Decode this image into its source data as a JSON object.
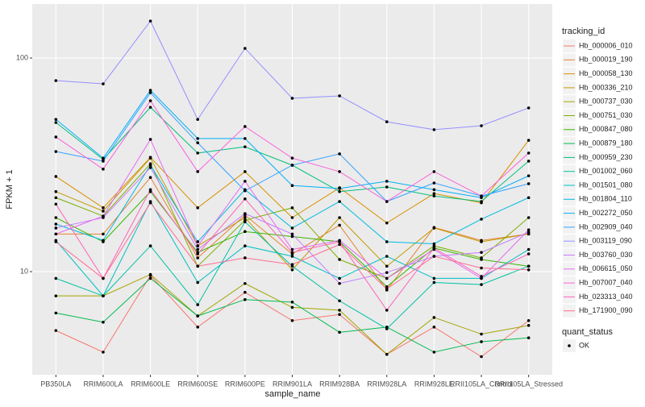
{
  "chart_data": {
    "type": "line",
    "x_label": "sample_name",
    "y_label": "FPKM + 1",
    "y_scale": "log",
    "grid": true,
    "legend_position": "right",
    "point_color": "#000000",
    "legend_title": "tracking_id",
    "shape_legend": {
      "title": "quant_status",
      "labels": [
        "OK"
      ]
    },
    "ylim": [
      3.29,
      179
    ],
    "yticks": [
      10,
      100
    ],
    "categories": [
      "PB350LA",
      "RRIM600LA",
      "RRIM600LE",
      "RRIM600SE",
      "RRIM600PE",
      "RRIM901LA",
      "RRIM928BA",
      "RRIM928LA",
      "RRIM928LE",
      "RRII105LA_Control",
      "RRII105LA_Stressed"
    ],
    "series": [
      {
        "name": "Hb_000006_010",
        "color": "#F8766D",
        "values": [
          5.3,
          4.2,
          9.6,
          5.5,
          8.0,
          5.9,
          6.3,
          4.1,
          5.5,
          4.0,
          5.9
        ]
      },
      {
        "name": "Hb_000019_190",
        "color": "#EA8331",
        "values": [
          15.0,
          15.0,
          27.6,
          11.6,
          18.4,
          12.1,
          16.5,
          8.2,
          16.1,
          14.0,
          15.0
        ]
      },
      {
        "name": "Hb_000058_130",
        "color": "#D89000",
        "values": [
          27.9,
          19.9,
          34.3,
          19.9,
          29.4,
          17.9,
          24.7,
          16.9,
          23.2,
          21.0,
          41.2
        ]
      },
      {
        "name": "Hb_000336_210",
        "color": "#C09B00",
        "values": [
          23.7,
          19.2,
          34.0,
          13.2,
          17.9,
          10.2,
          17.9,
          10.6,
          16.0,
          13.8,
          15.0
        ]
      },
      {
        "name": "Hb_000737_030",
        "color": "#A3A500",
        "values": [
          7.7,
          7.7,
          9.7,
          6.2,
          8.8,
          6.8,
          6.6,
          4.1,
          6.1,
          5.1,
          5.6
        ]
      },
      {
        "name": "Hb_000751_030",
        "color": "#7CAE00",
        "values": [
          22.2,
          18.2,
          32.0,
          10.6,
          17.4,
          19.9,
          11.4,
          9.3,
          13.2,
          11.6,
          17.9
        ]
      },
      {
        "name": "Hb_000847_080",
        "color": "#39B600",
        "values": [
          17.9,
          13.8,
          23.7,
          12.3,
          15.4,
          14.6,
          13.8,
          8.5,
          12.9,
          11.4,
          10.6
        ]
      },
      {
        "name": "Hb_000879_180",
        "color": "#00BB4E",
        "values": [
          6.4,
          5.8,
          9.3,
          6.2,
          7.4,
          7.2,
          5.2,
          5.5,
          4.2,
          4.7,
          4.9
        ]
      },
      {
        "name": "Hb_000959_230",
        "color": "#00BF7D",
        "values": [
          49.9,
          33.5,
          58.8,
          35.9,
          38.4,
          31.5,
          23.7,
          24.9,
          22.6,
          21.3,
          32.9
        ]
      },
      {
        "name": "Hb_001002_060",
        "color": "#00C1A3",
        "values": [
          9.3,
          7.7,
          13.2,
          7.0,
          17.1,
          10.6,
          7.3,
          5.4,
          8.9,
          8.7,
          10.6
        ]
      },
      {
        "name": "Hb_001501_080",
        "color": "#00BFC4",
        "values": [
          14.0,
          7.7,
          21.3,
          8.9,
          13.2,
          11.8,
          9.3,
          11.8,
          9.3,
          9.3,
          12.7
        ]
      },
      {
        "name": "Hb_001804_110",
        "color": "#00BAE0",
        "values": [
          16.7,
          14.0,
          31.5,
          13.8,
          24.2,
          16.0,
          21.3,
          13.8,
          13.5,
          17.6,
          22.2
        ]
      },
      {
        "name": "Hb_002272_050",
        "color": "#00B0F6",
        "values": [
          51.6,
          34.0,
          70.6,
          42.0,
          42.0,
          25.3,
          24.5,
          26.5,
          24.2,
          22.2,
          28.1
        ]
      },
      {
        "name": "Hb_002909_040",
        "color": "#35A2FF",
        "values": [
          36.5,
          32.9,
          68.8,
          40.1,
          23.9,
          31.5,
          35.6,
          21.3,
          26.0,
          22.6,
          25.8
        ]
      },
      {
        "name": "Hb_003119_090",
        "color": "#9590FF",
        "values": [
          78.4,
          75.7,
          149,
          51.6,
          111,
          64.8,
          66.5,
          50.3,
          46.2,
          48.2,
          58.4
        ]
      },
      {
        "name": "Hb_003760_030",
        "color": "#C77CFF",
        "values": [
          16.0,
          17.9,
          30.7,
          12.7,
          18.7,
          15.0,
          8.8,
          9.9,
          11.8,
          12.3,
          15.3
        ]
      },
      {
        "name": "Hb_006615_050",
        "color": "#E76BF3",
        "values": [
          15.0,
          18.2,
          41.6,
          13.2,
          26.5,
          12.7,
          14.0,
          9.3,
          12.7,
          9.3,
          15.7
        ]
      },
      {
        "name": "Hb_007007_040",
        "color": "#FA62DB",
        "values": [
          42.7,
          30.2,
          63.1,
          29.4,
          47.8,
          34.0,
          29.4,
          21.3,
          29.4,
          22.6,
          35.9
        ]
      },
      {
        "name": "Hb_023313_040",
        "color": "#FF62BC",
        "values": [
          20.7,
          9.3,
          24.2,
          12.1,
          21.9,
          12.3,
          13.8,
          6.6,
          12.9,
          9.5,
          12.1
        ]
      },
      {
        "name": "Hb_171900_090",
        "color": "#FF6C91",
        "values": [
          13.8,
          9.3,
          21.0,
          10.6,
          11.6,
          10.8,
          13.4,
          8.3,
          11.8,
          10.4,
          10.2
        ]
      }
    ]
  }
}
